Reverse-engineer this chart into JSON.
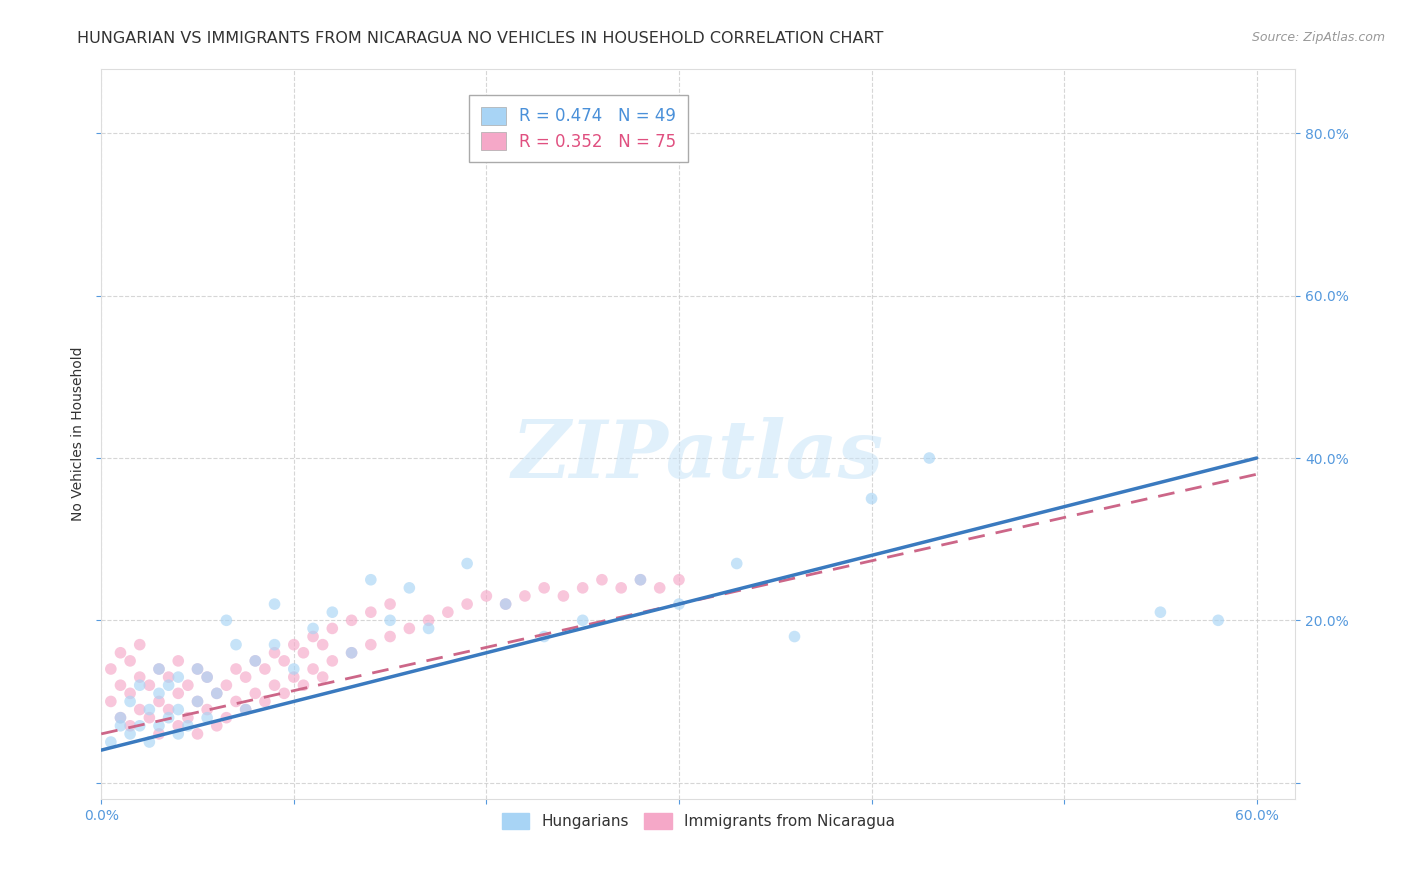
{
  "title": "HUNGARIAN VS IMMIGRANTS FROM NICARAGUA NO VEHICLES IN HOUSEHOLD CORRELATION CHART",
  "source": "Source: ZipAtlas.com",
  "ylabel": "No Vehicles in Household",
  "xlim": [
    0.0,
    0.62
  ],
  "ylim": [
    -0.02,
    0.88
  ],
  "x_ticks": [
    0.0,
    0.1,
    0.2,
    0.3,
    0.4,
    0.5,
    0.6
  ],
  "y_ticks": [
    0.0,
    0.2,
    0.4,
    0.6,
    0.8
  ],
  "color_hungarian": "#a8d4f5",
  "color_nicaragua": "#f5a8c8",
  "legend_R_hungarian": "R = 0.474",
  "legend_N_hungarian": "N = 49",
  "legend_R_nicaragua": "R = 0.352",
  "legend_N_nicaragua": "N = 75",
  "legend_color_hungarian": "#4a90d9",
  "legend_color_nicaragua": "#e05080",
  "trendline_color_hungarian": "#3a7abf",
  "trendline_color_nicaragua": "#cc6688",
  "hungarian_x": [
    0.005,
    0.01,
    0.01,
    0.015,
    0.015,
    0.02,
    0.02,
    0.025,
    0.025,
    0.03,
    0.03,
    0.03,
    0.035,
    0.035,
    0.04,
    0.04,
    0.04,
    0.045,
    0.05,
    0.05,
    0.055,
    0.055,
    0.06,
    0.065,
    0.07,
    0.075,
    0.08,
    0.09,
    0.09,
    0.1,
    0.11,
    0.12,
    0.13,
    0.14,
    0.15,
    0.16,
    0.17,
    0.19,
    0.21,
    0.23,
    0.25,
    0.28,
    0.3,
    0.33,
    0.36,
    0.4,
    0.43,
    0.55,
    0.58
  ],
  "hungarian_y": [
    0.05,
    0.07,
    0.08,
    0.06,
    0.1,
    0.07,
    0.12,
    0.05,
    0.09,
    0.07,
    0.11,
    0.14,
    0.08,
    0.12,
    0.06,
    0.09,
    0.13,
    0.07,
    0.1,
    0.14,
    0.08,
    0.13,
    0.11,
    0.2,
    0.17,
    0.09,
    0.15,
    0.22,
    0.17,
    0.14,
    0.19,
    0.21,
    0.16,
    0.25,
    0.2,
    0.24,
    0.19,
    0.27,
    0.22,
    0.18,
    0.2,
    0.25,
    0.22,
    0.27,
    0.18,
    0.35,
    0.4,
    0.21,
    0.2
  ],
  "nicaragua_x": [
    0.005,
    0.005,
    0.01,
    0.01,
    0.01,
    0.015,
    0.015,
    0.015,
    0.02,
    0.02,
    0.02,
    0.025,
    0.025,
    0.03,
    0.03,
    0.03,
    0.035,
    0.035,
    0.04,
    0.04,
    0.04,
    0.045,
    0.045,
    0.05,
    0.05,
    0.05,
    0.055,
    0.055,
    0.06,
    0.06,
    0.065,
    0.065,
    0.07,
    0.07,
    0.075,
    0.075,
    0.08,
    0.08,
    0.085,
    0.085,
    0.09,
    0.09,
    0.095,
    0.095,
    0.1,
    0.1,
    0.105,
    0.105,
    0.11,
    0.11,
    0.115,
    0.115,
    0.12,
    0.12,
    0.13,
    0.13,
    0.14,
    0.14,
    0.15,
    0.15,
    0.16,
    0.17,
    0.18,
    0.19,
    0.2,
    0.21,
    0.22,
    0.23,
    0.24,
    0.25,
    0.26,
    0.27,
    0.28,
    0.29,
    0.3
  ],
  "nicaragua_y": [
    0.1,
    0.14,
    0.08,
    0.12,
    0.16,
    0.07,
    0.11,
    0.15,
    0.09,
    0.13,
    0.17,
    0.08,
    0.12,
    0.06,
    0.1,
    0.14,
    0.09,
    0.13,
    0.07,
    0.11,
    0.15,
    0.08,
    0.12,
    0.06,
    0.1,
    0.14,
    0.09,
    0.13,
    0.07,
    0.11,
    0.08,
    0.12,
    0.1,
    0.14,
    0.09,
    0.13,
    0.11,
    0.15,
    0.1,
    0.14,
    0.12,
    0.16,
    0.11,
    0.15,
    0.13,
    0.17,
    0.12,
    0.16,
    0.14,
    0.18,
    0.13,
    0.17,
    0.15,
    0.19,
    0.16,
    0.2,
    0.17,
    0.21,
    0.18,
    0.22,
    0.19,
    0.2,
    0.21,
    0.22,
    0.23,
    0.22,
    0.23,
    0.24,
    0.23,
    0.24,
    0.25,
    0.24,
    0.25,
    0.24,
    0.25
  ],
  "watermark_text": "ZIPatlas",
  "background_color": "#ffffff",
  "grid_color": "#cccccc",
  "tick_color_x": "#5599dd",
  "tick_color_y": "#5599dd",
  "title_color": "#333333",
  "title_fontsize": 11.5,
  "axis_label_fontsize": 10,
  "legend_fontsize": 12,
  "marker_size": 70,
  "marker_alpha": 0.65
}
